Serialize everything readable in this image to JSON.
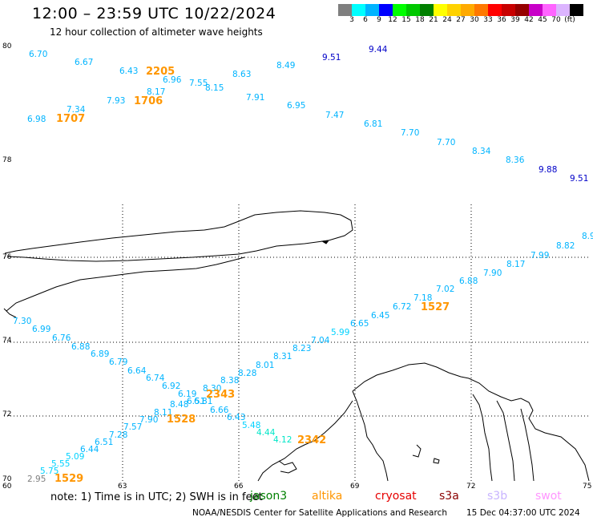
{
  "title": "12:00 – 23:59 UTC 10/22/2024",
  "subtitle": "12 hour collection of altimeter wave heights",
  "colorbar": {
    "colors": [
      "#7f7f7f",
      "#00ffff",
      "#00b4ff",
      "#0000ff",
      "#00ff00",
      "#00c800",
      "#008000",
      "#ffff00",
      "#ffd200",
      "#ffaa00",
      "#ff7800",
      "#ff0000",
      "#c80000",
      "#960000",
      "#c800c8",
      "#ff64ff",
      "#dcb4ff",
      "#000000"
    ],
    "labels": [
      "3",
      "6",
      "9",
      "12",
      "15",
      "18",
      "21",
      "24",
      "27",
      "30",
      "33",
      "36",
      "39",
      "42",
      "45",
      "70",
      "(ft)"
    ]
  },
  "axes": {
    "lat_labels": [
      "80",
      "78",
      "76",
      "74",
      "72",
      "70"
    ],
    "lon_labels": [
      "60",
      "63",
      "66",
      "69",
      "72",
      "75"
    ]
  },
  "observations": [
    {
      "v": "6.70",
      "c": "#00b4ff"
    },
    {
      "v": "6.67",
      "c": "#00b4ff"
    },
    {
      "v": "6.43",
      "c": "#00b4ff"
    },
    {
      "v": "6.96",
      "c": "#00b4ff"
    },
    {
      "v": "7.55",
      "c": "#00b4ff"
    },
    {
      "v": "8.15",
      "c": "#00b4ff"
    },
    {
      "v": "8.63",
      "c": "#00b4ff"
    },
    {
      "v": "8.49",
      "c": "#00b4ff"
    },
    {
      "v": "9.51",
      "c": "#0000c8"
    },
    {
      "v": "9.44",
      "c": "#0000c8"
    },
    {
      "v": "8.17",
      "c": "#00b4ff"
    },
    {
      "v": "7.93",
      "c": "#00b4ff"
    },
    {
      "v": "7.91",
      "c": "#00b4ff"
    },
    {
      "v": "6.95",
      "c": "#00b4ff"
    },
    {
      "v": "7.34",
      "c": "#00b4ff"
    },
    {
      "v": "6.98",
      "c": "#00b4ff"
    },
    {
      "v": "7.47",
      "c": "#00b4ff"
    },
    {
      "v": "6.81",
      "c": "#00b4ff"
    },
    {
      "v": "7.70",
      "c": "#00b4ff"
    },
    {
      "v": "7.70",
      "c": "#00b4ff"
    },
    {
      "v": "8.34",
      "c": "#00b4ff"
    },
    {
      "v": "8.36",
      "c": "#00b4ff"
    },
    {
      "v": "9.88",
      "c": "#0000c8"
    },
    {
      "v": "9.51",
      "c": "#0000c8"
    },
    {
      "v": "8.9",
      "c": "#00b4ff"
    },
    {
      "v": "8.82",
      "c": "#00b4ff"
    },
    {
      "v": "7.99",
      "c": "#00b4ff"
    },
    {
      "v": "8.17",
      "c": "#00b4ff"
    },
    {
      "v": "7.90",
      "c": "#00b4ff"
    },
    {
      "v": "6.88",
      "c": "#00b4ff"
    },
    {
      "v": "7.02",
      "c": "#00b4ff"
    },
    {
      "v": "7.18",
      "c": "#00b4ff"
    },
    {
      "v": "6.72",
      "c": "#00b4ff"
    },
    {
      "v": "6.45",
      "c": "#00b4ff"
    },
    {
      "v": "6.65",
      "c": "#00b4ff"
    },
    {
      "v": "5.99",
      "c": "#00d2ff"
    },
    {
      "v": "7.04",
      "c": "#00b4ff"
    },
    {
      "v": "8.23",
      "c": "#00b4ff"
    },
    {
      "v": "8.31",
      "c": "#00b4ff"
    },
    {
      "v": "8.01",
      "c": "#00b4ff"
    },
    {
      "v": "8.28",
      "c": "#00b4ff"
    },
    {
      "v": "8.38",
      "c": "#00b4ff"
    },
    {
      "v": "8.30",
      "c": "#00b4ff"
    },
    {
      "v": "6.19",
      "c": "#00b4ff"
    },
    {
      "v": "6.51",
      "c": "#00b4ff"
    },
    {
      "v": "6.81",
      "c": "#00b4ff"
    },
    {
      "v": "6.66",
      "c": "#00b4ff"
    },
    {
      "v": "6.43",
      "c": "#00b4ff"
    },
    {
      "v": "5.48",
      "c": "#00d2ff"
    },
    {
      "v": "4.44",
      "c": "#00e6c8"
    },
    {
      "v": "4.12",
      "c": "#00e6c8"
    },
    {
      "v": "7.30",
      "c": "#00b4ff"
    },
    {
      "v": "6.99",
      "c": "#00b4ff"
    },
    {
      "v": "6.76",
      "c": "#00b4ff"
    },
    {
      "v": "6.88",
      "c": "#00b4ff"
    },
    {
      "v": "6.89",
      "c": "#00b4ff"
    },
    {
      "v": "6.79",
      "c": "#00b4ff"
    },
    {
      "v": "6.64",
      "c": "#00b4ff"
    },
    {
      "v": "6.74",
      "c": "#00b4ff"
    },
    {
      "v": "6.92",
      "c": "#00b4ff"
    },
    {
      "v": "8.48",
      "c": "#00b4ff"
    },
    {
      "v": "8.11",
      "c": "#00b4ff"
    },
    {
      "v": "7.90",
      "c": "#00b4ff"
    },
    {
      "v": "7.57",
      "c": "#00b4ff"
    },
    {
      "v": "7.28",
      "c": "#00b4ff"
    },
    {
      "v": "6.51",
      "c": "#00b4ff"
    },
    {
      "v": "6.44",
      "c": "#00b4ff"
    },
    {
      "v": "5.09",
      "c": "#00d2ff"
    },
    {
      "v": "5.55",
      "c": "#00d2ff"
    },
    {
      "v": "5.75",
      "c": "#00d2ff"
    },
    {
      "v": "2.95",
      "c": "#7f7f7f"
    }
  ],
  "pass_times": [
    {
      "v": "2205",
      "c": "#ff9600"
    },
    {
      "v": "1706",
      "c": "#ff9600"
    },
    {
      "v": "1707",
      "c": "#ff9600"
    },
    {
      "v": "1527",
      "c": "#ff9600"
    },
    {
      "v": "2343",
      "c": "#ff9600"
    },
    {
      "v": "1528",
      "c": "#ff9600"
    },
    {
      "v": "2342",
      "c": "#ff9600"
    },
    {
      "v": "1529",
      "c": "#ff9600"
    }
  ],
  "note": "note:  1) Time is in UTC; 2) SWH is in feet",
  "satellites": [
    {
      "name": "jason3",
      "color": "#008000"
    },
    {
      "name": "altika",
      "color": "#ff9600"
    },
    {
      "name": "cryosat",
      "color": "#e60000"
    },
    {
      "name": "s3a",
      "color": "#8b0000"
    },
    {
      "name": "s3b",
      "color": "#c8b4ff"
    },
    {
      "name": "swot",
      "color": "#ff96ff"
    }
  ],
  "footer": {
    "credit": "NOAA/NESDIS Center for Satellite Applications and Research",
    "generated": "15 Dec 04:37:00 UTC 2024"
  }
}
